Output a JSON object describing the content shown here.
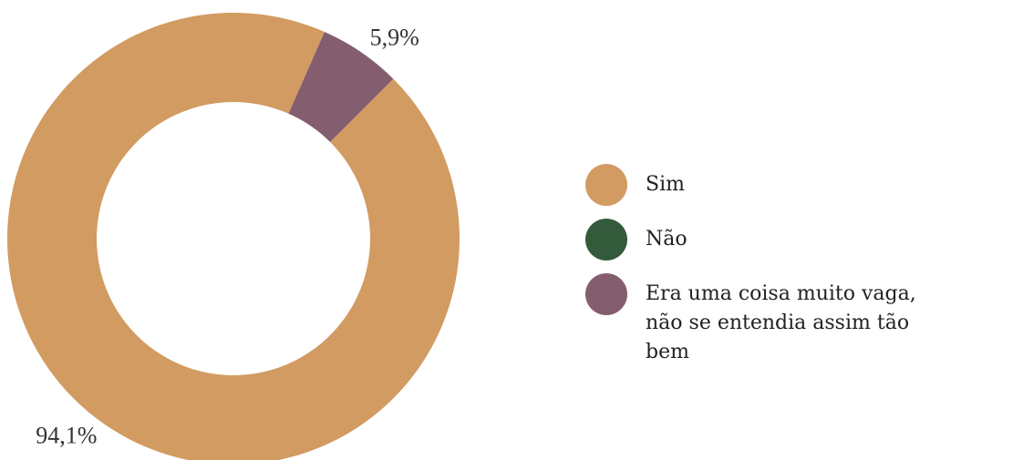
{
  "chart_data": {
    "type": "donut",
    "categories": [
      "Sim",
      "Não",
      "Era uma coisa muito vaga, não se entendia assim tão bem"
    ],
    "values": [
      94.1,
      0,
      5.9
    ],
    "value_labels": [
      "94,1%",
      null,
      "5,9%"
    ],
    "colors": [
      "#d29b62",
      "#335a3a",
      "#845e6e"
    ],
    "legend": "right"
  }
}
